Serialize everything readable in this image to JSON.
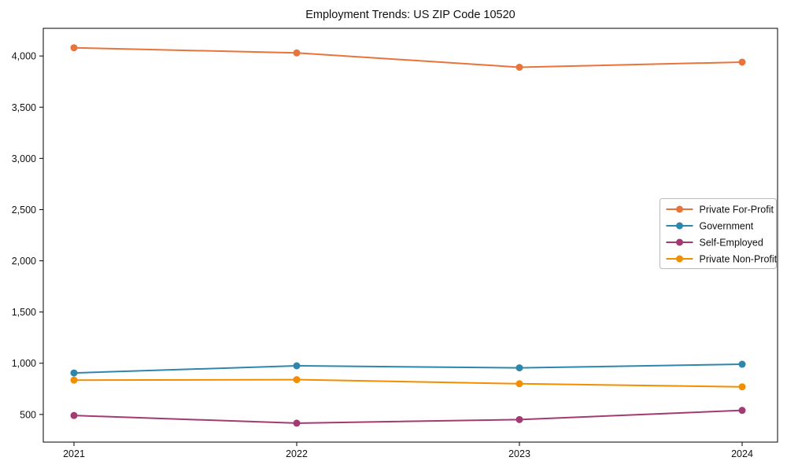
{
  "chart_data": {
    "type": "line",
    "title": "Employment Trends: US ZIP Code 10520",
    "xlabel": "",
    "ylabel": "",
    "x": [
      2021,
      2022,
      2023,
      2024
    ],
    "xtick_labels": [
      "2021",
      "2022",
      "2023",
      "2024"
    ],
    "yticks": [
      500,
      1000,
      1500,
      2000,
      2500,
      3000,
      3500,
      4000
    ],
    "ytick_labels": [
      "500",
      "1,000",
      "1,500",
      "2,000",
      "2,500",
      "3,000",
      "3,500",
      "4,000"
    ],
    "ylim": [
      230,
      4270
    ],
    "grid": false,
    "marker": "circle",
    "legend_position": "center right",
    "series": [
      {
        "name": "Private For-Profit",
        "color": "#E8743B",
        "values": [
          4080,
          4030,
          3890,
          3940
        ]
      },
      {
        "name": "Government",
        "color": "#2E86AB",
        "values": [
          905,
          975,
          955,
          990
        ]
      },
      {
        "name": "Self-Employed",
        "color": "#A23B72",
        "values": [
          490,
          415,
          450,
          540
        ]
      },
      {
        "name": "Private Non-Profit",
        "color": "#F18F01",
        "values": [
          835,
          840,
          800,
          770
        ]
      }
    ],
    "colors": {
      "axis": "#000000",
      "text": "#111111",
      "legend_border": "#b9b9b9",
      "background": "#ffffff"
    }
  }
}
